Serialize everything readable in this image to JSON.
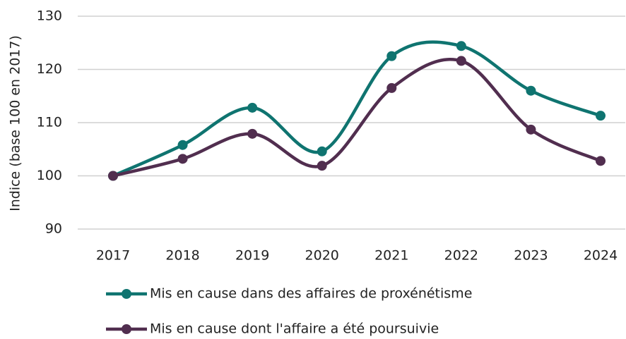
{
  "chart_data": {
    "type": "line",
    "y_label": "Indice (base 100 en  2017)",
    "categories": [
      "2017",
      "2018",
      "2019",
      "2020",
      "2021",
      "2022",
      "2023",
      "2024"
    ],
    "series": [
      {
        "name": "Mis en cause dans des affaires de proxénétisme",
        "color": "#0f7470",
        "values": [
          100,
          105.8,
          112.8,
          104.6,
          122.5,
          124.4,
          116,
          111.3
        ]
      },
      {
        "name": "Mis en cause dont l'affaire a été poursuivie",
        "color": "#512e4f",
        "values": [
          100,
          103.2,
          107.9,
          101.9,
          116.5,
          121.6,
          108.7,
          102.8
        ]
      }
    ],
    "ylim": [
      90,
      130
    ],
    "yticks": [
      90,
      100,
      110,
      120,
      130
    ],
    "grid": true,
    "smooth": true,
    "legend": "bottom"
  }
}
